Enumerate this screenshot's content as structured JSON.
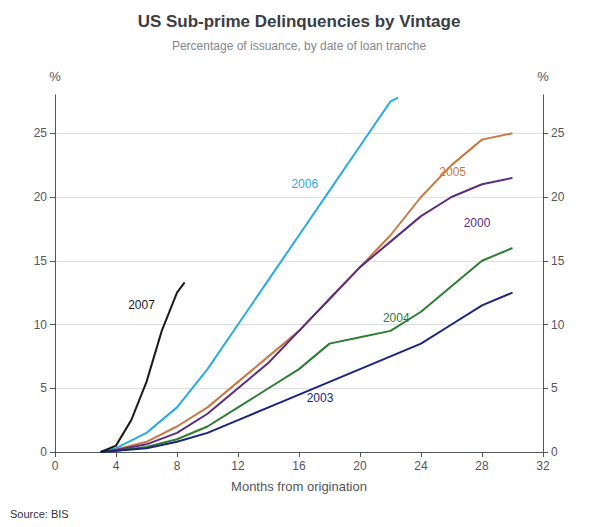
{
  "chart_data": {
    "type": "line",
    "title": "US Sub-prime Delinquencies by Vintage",
    "subtitle": "Percentage of issuance, by date of loan tranche",
    "xlabel": "Months from origination",
    "ylabel": "%",
    "y2label": "%",
    "source": "Source: BIS",
    "xlim": [
      0,
      32
    ],
    "xticks": [
      0,
      4,
      8,
      12,
      16,
      20,
      24,
      28,
      32
    ],
    "ylim": [
      0,
      28
    ],
    "yticks": [
      0,
      5,
      10,
      15,
      20,
      25
    ],
    "y2lim": [
      0,
      28
    ],
    "y2ticks": [
      0,
      5,
      10,
      15,
      20,
      25
    ],
    "grid": true,
    "series": [
      {
        "name": "2006",
        "color": "#29abe2",
        "x": [
          3,
          4,
          6,
          8,
          10,
          12,
          14,
          16,
          18,
          20,
          22,
          22.5
        ],
        "values": [
          0.0,
          0.3,
          1.5,
          3.5,
          6.5,
          10.0,
          13.5,
          17.0,
          20.5,
          24.0,
          27.5,
          27.8
        ],
        "label_at": [
          15.5,
          21.0
        ]
      },
      {
        "name": "2005",
        "color": "#c87941",
        "x": [
          3,
          4,
          6,
          8,
          10,
          12,
          14,
          16,
          18,
          20,
          22,
          24,
          26,
          28,
          30
        ],
        "values": [
          0.0,
          0.2,
          0.8,
          2.0,
          3.5,
          5.5,
          7.5,
          9.5,
          12.0,
          14.5,
          17.0,
          20.0,
          22.5,
          24.5,
          25.0
        ],
        "label_at": [
          25.2,
          22.0
        ]
      },
      {
        "name": "2000",
        "color": "#5b2d82",
        "x": [
          3,
          4,
          6,
          8,
          10,
          12,
          14,
          16,
          18,
          20,
          22,
          24,
          26,
          28,
          30
        ],
        "values": [
          0.0,
          0.15,
          0.6,
          1.5,
          3.0,
          5.0,
          7.0,
          9.5,
          12.0,
          14.5,
          16.5,
          18.5,
          20.0,
          21.0,
          21.5
        ],
        "label_at": [
          26.8,
          18.0
        ]
      },
      {
        "name": "2004",
        "color": "#2e7d32",
        "x": [
          3,
          4,
          6,
          8,
          10,
          12,
          14,
          16,
          18,
          20,
          22,
          24,
          26,
          28,
          30
        ],
        "values": [
          0.0,
          0.1,
          0.4,
          1.0,
          2.0,
          3.5,
          5.0,
          6.5,
          8.5,
          9.0,
          9.5,
          11.0,
          13.0,
          15.0,
          16.0
        ],
        "label_at": [
          21.5,
          10.5
        ]
      },
      {
        "name": "2003",
        "color": "#1a237e",
        "x": [
          3,
          4,
          6,
          8,
          10,
          12,
          14,
          16,
          18,
          20,
          22,
          24,
          26,
          28,
          30
        ],
        "values": [
          0.0,
          0.1,
          0.3,
          0.8,
          1.5,
          2.5,
          3.5,
          4.5,
          5.5,
          6.5,
          7.5,
          8.5,
          10.0,
          11.5,
          12.5
        ],
        "label_at": [
          16.5,
          4.2
        ]
      },
      {
        "name": "2007",
        "color": "#1a1a1a",
        "x": [
          3,
          4,
          5,
          6,
          7,
          8,
          8.5
        ],
        "values": [
          0.0,
          0.5,
          2.5,
          5.5,
          9.5,
          12.5,
          13.3
        ],
        "label_at": [
          4.8,
          11.5
        ]
      }
    ]
  }
}
